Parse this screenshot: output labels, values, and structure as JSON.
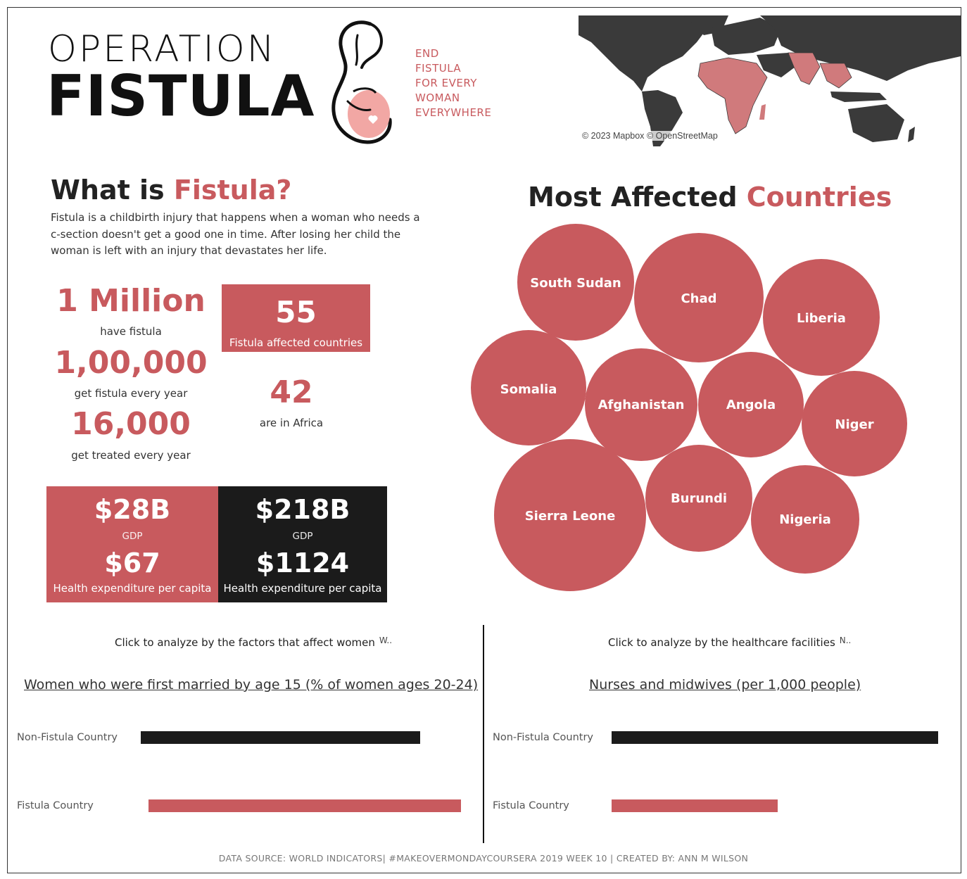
{
  "header": {
    "logo_line1": "OPERATION",
    "logo_line2": "FISTULA",
    "tagline": [
      "END",
      "FISTULA",
      "FOR EVERY",
      "WOMAN",
      "EVERYWHERE"
    ],
    "map_credit": "© 2023 Mapbox © OpenStreetMap"
  },
  "what": {
    "title_prefix": "What is ",
    "title_accent": "Fistula?",
    "body": "Fistula is a childbirth injury that happens when a woman who needs a c-section doesn't get a good one in time. After losing her child the woman is left with an injury that devastates her life."
  },
  "stats": {
    "s1_value": "1 Million",
    "s1_label": "have fistula",
    "s2_value": "1,00,000",
    "s2_label": "get fistula every year",
    "s3_value": "16,000",
    "s3_label": "get treated every year",
    "countries_value": "55",
    "countries_label": "Fistula affected countries",
    "africa_value": "42",
    "africa_label": "are in Africa"
  },
  "economy": {
    "fistula": {
      "gdp": "$28B",
      "gdp_label": "GDP",
      "health": "$67",
      "health_label": "Health expenditure per capita"
    },
    "non_fistula": {
      "gdp": "$218B",
      "gdp_label": "GDP",
      "health": "$1124",
      "health_label": "Health expenditure per capita"
    }
  },
  "affected": {
    "title_prefix": "Most Affected ",
    "title_accent": "Countries",
    "countries": [
      "South Sudan",
      "Chad",
      "Liberia",
      "Somalia",
      "Afghanistan",
      "Angola",
      "Niger",
      "Sierra Leone",
      "Burundi",
      "Nigeria"
    ]
  },
  "left_panel": {
    "click_text": "Click to analyze by the factors that affect women",
    "dropdown_hint": "W..",
    "chart_title": "Women who were first married by age 15 (% of women ages 20-24)",
    "rows": [
      {
        "label": "Non-Fistula Country",
        "value_fraction": 0.87
      },
      {
        "label": "Fistula Country",
        "value_fraction": 0.97
      }
    ]
  },
  "right_panel": {
    "click_text": "Click to analyze by the healthcare facilities",
    "dropdown_hint": "N..",
    "chart_title": "Nurses and midwives (per 1,000 people)",
    "rows": [
      {
        "label": "Non-Fistula Country",
        "value_fraction": 1.0
      },
      {
        "label": "Fistula Country",
        "value_fraction": 0.51
      }
    ]
  },
  "footer": "DATA SOURCE: WORLD INDICATORS| #MAKEOVERMONDAYCOURSERA 2019 WEEK 10 | CREATED BY: ANN M WILSON",
  "colors": {
    "accent": "#c85a5e",
    "dark": "#1b1b1b",
    "map_land": "#3a3a3a",
    "map_highlight": "#d07a7c"
  }
}
